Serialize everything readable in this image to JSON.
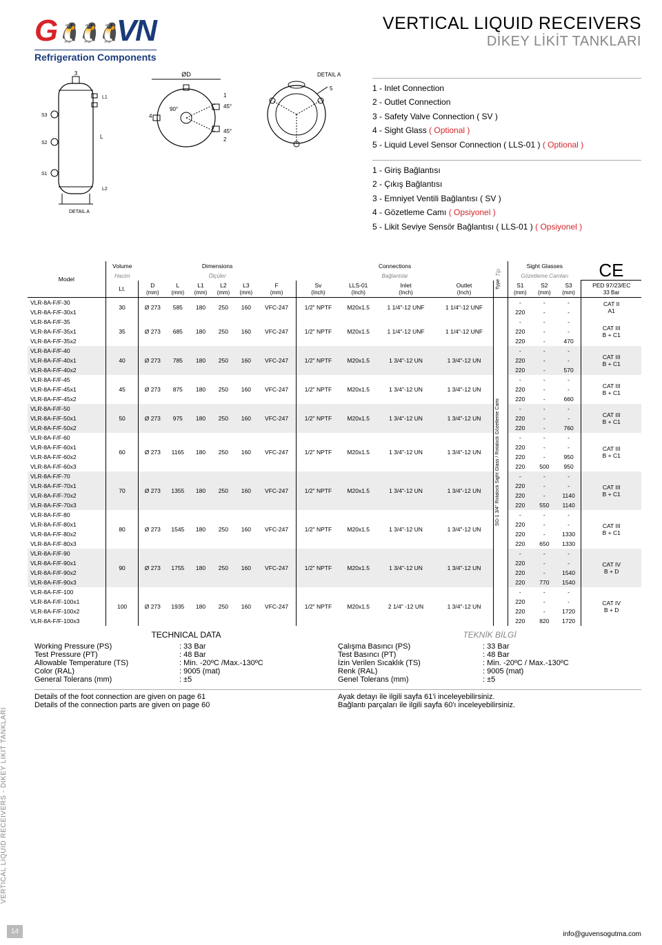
{
  "logo": {
    "g": "G",
    "vn": "VN",
    "sub": "Refrigeration Components"
  },
  "title": {
    "main": "VERTICAL LIQUID RECEIVERS",
    "sub": "DİKEY LİKİT TANKLARI"
  },
  "legend_en": [
    {
      "n": "1",
      "t": "Inlet Connection"
    },
    {
      "n": "2",
      "t": "Outlet Connection"
    },
    {
      "n": "3",
      "t": "Safety Valve Connection ( SV )"
    },
    {
      "n": "4",
      "t": "Sight Glass ",
      "opt": "( Optional )"
    },
    {
      "n": "5",
      "t": "Liquid Level Sensor Connection ( LLS-01 ) ",
      "opt": "( Optional )"
    }
  ],
  "legend_tr": [
    {
      "n": "1",
      "t": "Giriş Bağlantısı"
    },
    {
      "n": "2",
      "t": "Çıkış Bağlantısı"
    },
    {
      "n": "3",
      "t": "Emniyet Ventili Bağlantısı ( SV )"
    },
    {
      "n": "4",
      "t": "Gözetleme Camı ",
      "opt": "( Opsiyonel )"
    },
    {
      "n": "5",
      "t": "Likit Seviye Sensör Bağlantısı ( LLS-01 ) ",
      "opt": "( Opsiyonel )"
    }
  ],
  "headers": {
    "model": "Model",
    "volume": "Volume",
    "volume_sub": "Hacim",
    "volume_unit": "Lt.",
    "dim": "Dimensions",
    "dim_sub": "Ölçüler",
    "conn": "Connections",
    "conn_sub": "Bağlantılar",
    "type": "Type",
    "type_sub": "Tip",
    "sight": "Sight Glasses",
    "sight_sub": "Gözetleme Camları",
    "ce": "CE",
    "ped": "PED 97/23/EC",
    "ped_sub": "33 Bar",
    "cols": {
      "D": "D",
      "L": "L",
      "L1": "L1",
      "L2": "L2",
      "L3": "L3",
      "F": "F",
      "Sv": "Sv",
      "LLS": "LLS-01",
      "Inlet": "Inlet",
      "Outlet": "Outlet",
      "S1": "S1",
      "S2": "S2",
      "S3": "S3",
      "mm": "(mm)",
      "inch": "(Inch)"
    },
    "type_text": "SG-1 3/4\"  Rotalock Sight Glass  /  Rotalock Gözetleme Camı"
  },
  "groups": [
    {
      "shade": false,
      "spec": {
        "vol": "30",
        "D": "Ø 273",
        "L": "585",
        "L1": "180",
        "L2": "250",
        "L3": "160",
        "F": "VFC-247",
        "Sv": "1/2\" NPTF",
        "LLS": "M20x1.5",
        "Inlet": "1 1/4\"-12 UNF",
        "Outlet": "1 1/4\"-12 UNF"
      },
      "rows": [
        {
          "m": "VLR-8A-F/F-30",
          "S1": "-",
          "S2": "-",
          "S3": "-"
        },
        {
          "m": "VLR-8A-F/F-30x1",
          "S1": "220",
          "S2": "-",
          "S3": "-"
        }
      ],
      "cat": "CAT II\nA1"
    },
    {
      "shade": false,
      "spec": {
        "vol": "35",
        "D": "Ø 273",
        "L": "685",
        "L1": "180",
        "L2": "250",
        "L3": "160",
        "F": "VFC-247",
        "Sv": "1/2\" NPTF",
        "LLS": "M20x1.5",
        "Inlet": "1 1/4\"-12 UNF",
        "Outlet": "1 1/4\"-12 UNF"
      },
      "rows": [
        {
          "m": "VLR-8A-F/F-35",
          "S1": "-",
          "S2": "-",
          "S3": "-"
        },
        {
          "m": "VLR-8A-F/F-35x1",
          "S1": "220",
          "S2": "-",
          "S3": "-"
        },
        {
          "m": "VLR-8A-F/F-35x2",
          "S1": "220",
          "S2": "-",
          "S3": "470"
        }
      ],
      "cat": "CAT III\nB + C1"
    },
    {
      "shade": true,
      "spec": {
        "vol": "40",
        "D": "Ø 273",
        "L": "785",
        "L1": "180",
        "L2": "250",
        "L3": "160",
        "F": "VFC-247",
        "Sv": "1/2\" NPTF",
        "LLS": "M20x1.5",
        "Inlet": "1 3/4\"-12 UN",
        "Outlet": "1 3/4\"-12 UN"
      },
      "rows": [
        {
          "m": "VLR-8A-F/F-40",
          "S1": "-",
          "S2": "-",
          "S3": "-"
        },
        {
          "m": "VLR-8A-F/F-40x1",
          "S1": "220",
          "S2": "-",
          "S3": "-"
        },
        {
          "m": "VLR-8A-F/F-40x2",
          "S1": "220",
          "S2": "-",
          "S3": "570"
        }
      ],
      "cat": "CAT III\nB + C1"
    },
    {
      "shade": false,
      "spec": {
        "vol": "45",
        "D": "Ø 273",
        "L": "875",
        "L1": "180",
        "L2": "250",
        "L3": "160",
        "F": "VFC-247",
        "Sv": "1/2\" NPTF",
        "LLS": "M20x1.5",
        "Inlet": "1 3/4\"-12 UN",
        "Outlet": "1 3/4\"-12 UN"
      },
      "rows": [
        {
          "m": "VLR-8A-F/F-45",
          "S1": "-",
          "S2": "-",
          "S3": "-"
        },
        {
          "m": "VLR-8A-F/F-45x1",
          "S1": "220",
          "S2": "-",
          "S3": "-"
        },
        {
          "m": "VLR-8A-F/F-45x2",
          "S1": "220",
          "S2": "-",
          "S3": "660"
        }
      ],
      "cat": "CAT III\nB + C1"
    },
    {
      "shade": true,
      "spec": {
        "vol": "50",
        "D": "Ø 273",
        "L": "975",
        "L1": "180",
        "L2": "250",
        "L3": "160",
        "F": "VFC-247",
        "Sv": "1/2\" NPTF",
        "LLS": "M20x1.5",
        "Inlet": "1 3/4\"-12 UN",
        "Outlet": "1 3/4\"-12 UN"
      },
      "rows": [
        {
          "m": "VLR-8A-F/F-50",
          "S1": "-",
          "S2": "-",
          "S3": "-"
        },
        {
          "m": "VLR-8A-F/F-50x1",
          "S1": "220",
          "S2": "-",
          "S3": "-"
        },
        {
          "m": "VLR-8A-F/F-50x2",
          "S1": "220",
          "S2": "-",
          "S3": "760"
        }
      ],
      "cat": "CAT III\nB + C1"
    },
    {
      "shade": false,
      "spec": {
        "vol": "60",
        "D": "Ø 273",
        "L": "1165",
        "L1": "180",
        "L2": "250",
        "L3": "160",
        "F": "VFC-247",
        "Sv": "1/2\" NPTF",
        "LLS": "M20x1.5",
        "Inlet": "1 3/4\"-12 UN",
        "Outlet": "1 3/4\"-12 UN"
      },
      "rows": [
        {
          "m": "VLR-8A-F/F-60",
          "S1": "-",
          "S2": "-",
          "S3": "-"
        },
        {
          "m": "VLR-8A-F/F-60x1",
          "S1": "220",
          "S2": "-",
          "S3": "-"
        },
        {
          "m": "VLR-8A-F/F-60x2",
          "S1": "220",
          "S2": "-",
          "S3": "950"
        },
        {
          "m": "VLR-8A-F/F-60x3",
          "S1": "220",
          "S2": "500",
          "S3": "950"
        }
      ],
      "cat": "CAT III\nB + C1"
    },
    {
      "shade": true,
      "spec": {
        "vol": "70",
        "D": "Ø 273",
        "L": "1355",
        "L1": "180",
        "L2": "250",
        "L3": "160",
        "F": "VFC-247",
        "Sv": "1/2\" NPTF",
        "LLS": "M20x1.5",
        "Inlet": "1 3/4\"-12 UN",
        "Outlet": "1 3/4\"-12 UN"
      },
      "rows": [
        {
          "m": "VLR-8A-F/F-70",
          "S1": "-",
          "S2": "-",
          "S3": "-"
        },
        {
          "m": "VLR-8A-F/F-70x1",
          "S1": "220",
          "S2": "-",
          "S3": "-"
        },
        {
          "m": "VLR-8A-F/F-70x2",
          "S1": "220",
          "S2": "-",
          "S3": "1140"
        },
        {
          "m": "VLR-8A-F/F-70x3",
          "S1": "220",
          "S2": "550",
          "S3": "1140"
        }
      ],
      "cat": "CAT III\nB + C1"
    },
    {
      "shade": false,
      "spec": {
        "vol": "80",
        "D": "Ø 273",
        "L": "1545",
        "L1": "180",
        "L2": "250",
        "L3": "160",
        "F": "VFC-247",
        "Sv": "1/2\" NPTF",
        "LLS": "M20x1.5",
        "Inlet": "1 3/4\"-12 UN",
        "Outlet": "1 3/4\"-12 UN"
      },
      "rows": [
        {
          "m": "VLR-8A-F/F-80",
          "S1": "-",
          "S2": "-",
          "S3": "-"
        },
        {
          "m": "VLR-8A-F/F-80x1",
          "S1": "220",
          "S2": "-",
          "S3": "-"
        },
        {
          "m": "VLR-8A-F/F-80x2",
          "S1": "220",
          "S2": "-",
          "S3": "1330"
        },
        {
          "m": "VLR-8A-F/F-80x3",
          "S1": "220",
          "S2": "650",
          "S3": "1330"
        }
      ],
      "cat": "CAT III\nB + C1"
    },
    {
      "shade": true,
      "spec": {
        "vol": "90",
        "D": "Ø 273",
        "L": "1755",
        "L1": "180",
        "L2": "250",
        "L3": "160",
        "F": "VFC-247",
        "Sv": "1/2\" NPTF",
        "LLS": "M20x1.5",
        "Inlet": "1 3/4\"-12 UN",
        "Outlet": "1 3/4\"-12 UN"
      },
      "rows": [
        {
          "m": "VLR-8A-F/F-90",
          "S1": "-",
          "S2": "-",
          "S3": "-"
        },
        {
          "m": "VLR-8A-F/F-90x1",
          "S1": "220",
          "S2": "-",
          "S3": "-"
        },
        {
          "m": "VLR-8A-F/F-90x2",
          "S1": "220",
          "S2": "-",
          "S3": "1540"
        },
        {
          "m": "VLR-8A-F/F-90x3",
          "S1": "220",
          "S2": "770",
          "S3": "1540"
        }
      ],
      "cat": "CAT IV\nB + D"
    },
    {
      "shade": false,
      "spec": {
        "vol": "100",
        "D": "Ø 273",
        "L": "1935",
        "L1": "180",
        "L2": "250",
        "L3": "160",
        "F": "VFC-247",
        "Sv": "1/2\" NPTF",
        "LLS": "M20x1.5",
        "Inlet": "2 1/4\" -12 UN",
        "Outlet": "1 3/4\"-12 UN"
      },
      "rows": [
        {
          "m": "VLR-8A-F/F-100",
          "S1": "-",
          "S2": "-",
          "S3": "-"
        },
        {
          "m": "VLR-8A-F/F-100x1",
          "S1": "220",
          "S2": "-",
          "S3": "-"
        },
        {
          "m": "VLR-8A-F/F-100x2",
          "S1": "220",
          "S2": "-",
          "S3": "1720"
        },
        {
          "m": "VLR-8A-F/F-100x3",
          "S1": "220",
          "S2": "820",
          "S3": "1720"
        }
      ],
      "cat": "CAT IV\nB + D"
    }
  ],
  "tech": {
    "head_en": "TECHNICAL DATA",
    "head_tr": "TEKNİK BİLGİ",
    "rows": [
      {
        "en_l": "Working Pressure (PS)",
        "en_v": "33 Bar",
        "tr_l": "Çalışma Basıncı (PS)",
        "tr_v": "33 Bar"
      },
      {
        "en_l": "Test Pressure (PT)",
        "en_v": "48 Bar",
        "tr_l": "Test Basıncı (PT)",
        "tr_v": "48 Bar"
      },
      {
        "en_l": "Allowable Temperature (TS)",
        "en_v": "Min. -20ºC /Max.-130ºC",
        "tr_l": "İzin Verilen Sıcaklık (TS)",
        "tr_v": "Min. -20ºC / Max.-130ºC"
      },
      {
        "en_l": "Color (RAL)",
        "en_v": "9005 (mat)",
        "tr_l": "Renk (RAL)",
        "tr_v": "9005 (mat)"
      },
      {
        "en_l": "General Tolerans (mm)",
        "en_v": "±5",
        "tr_l": "Genel Tolerans (mm)",
        "tr_v": "±5"
      }
    ]
  },
  "details": {
    "en": [
      "Details of the foot connection are given on page 61",
      "Details of the connection parts are given on page 60"
    ],
    "tr": [
      "Ayak detayı ile ilgili sayfa 61'i inceleyebilirsiniz.",
      "Bağlantı parçaları ile ilgili sayfa 60'ı inceleyebilirsiniz."
    ]
  },
  "side": "VERTICAL LIQUID RECEIVERS - DİKEY LİKİT TANKLARI",
  "page_num": "14",
  "footer_email": "info@guvensogutma.com",
  "drawing_labels": {
    "detailA": "DETAIL A",
    "ninety": "90°",
    "fortyfive": "45°",
    "S1": "S1",
    "S2": "S2",
    "S3": "S3",
    "L": "L",
    "L1": "L1",
    "L2": "L2",
    "OD": "ØD",
    "three": "3",
    "one": "1",
    "two": "2",
    "four": "4",
    "five": "5"
  }
}
